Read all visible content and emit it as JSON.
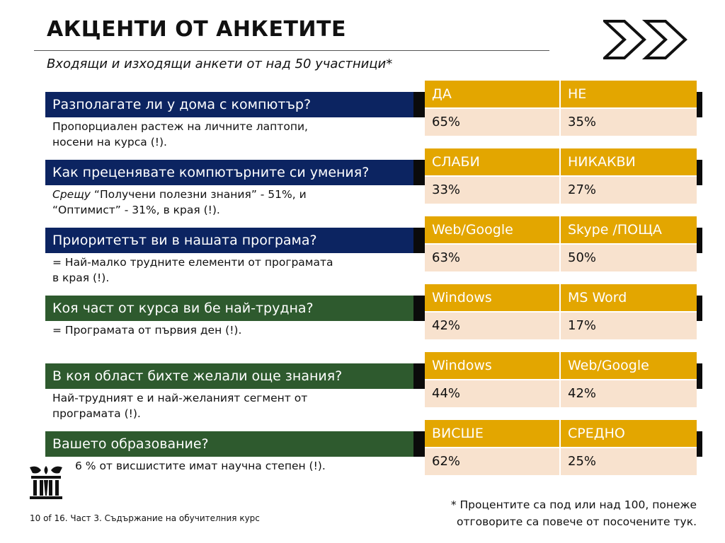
{
  "title": "АКЦЕНТИ ОТ АНКЕТИТЕ",
  "subtitle": "Входящи и изходящи анкети от над 50 участници*",
  "questions": [
    {
      "question": "Разполагате ли у дома с компютър?",
      "answer_line1": "Пропорциален растеж на личните лаптопи,",
      "answer_line2": "носени на курса (!).",
      "col1_header": "ДА",
      "col2_header": "НЕ",
      "col1_value": "65%",
      "col2_value": "35%"
    },
    {
      "question": "Как преценявате компютърните си умения?",
      "answer_em": "Срещу",
      "answer_line1_rest": " “Получени полезни знания” - 51%,  и",
      "answer_line2": "“Оптимист” - 31%, в края (!).",
      "col1_header": "СЛАБИ",
      "col2_header": "НИКАКВИ",
      "col1_value": "33%",
      "col2_value": "27%"
    },
    {
      "question": "Приоритетът ви в нашата програма?",
      "answer_line1": "= Най-малко трудните елементи от програмата",
      "answer_line2": "в края (!).",
      "col1_header": "Web/Google",
      "col2_header": "Skype /ПОЩА",
      "col1_value": "63%",
      "col2_value": "50%"
    },
    {
      "question": "Коя част от курса ви бе най-трудна?",
      "answer_line1": "= Програмата от първия ден (!).",
      "col1_header": "Windows",
      "col2_header": "MS Word",
      "col1_value": "42%",
      "col2_value": "17%"
    },
    {
      "question": "В коя област бихте желали още знания?",
      "answer_line1": "Най-трудният е и най-желаният сегмент от",
      "answer_line2": "програмата (!).",
      "col1_header": "Windows",
      "col2_header": "Web/Google",
      "col1_value": "44%",
      "col2_value": "42%"
    },
    {
      "question": "Вашето образование?",
      "answer_line1": "6 % от висшистите имат научна степен (!).",
      "col1_header": "ВИСШЕ",
      "col2_header": "СРЕДНО",
      "col1_value": "62%",
      "col2_value": "25%"
    }
  ],
  "footnote_line1": "* Процентите са под или над 100, понеже",
  "footnote_line2": "отговорите са повече от посочените тук.",
  "slide_footer": "10 of 16. Част 3. Съдържание на обучителния курс",
  "colors": {
    "navy": "#0c2461",
    "green": "#2e5a2e",
    "header_gold": "#e3a600",
    "value_peach": "#f8e2ce"
  },
  "icons": [
    "double-chevron-right-icon",
    "crest-logo-icon"
  ]
}
